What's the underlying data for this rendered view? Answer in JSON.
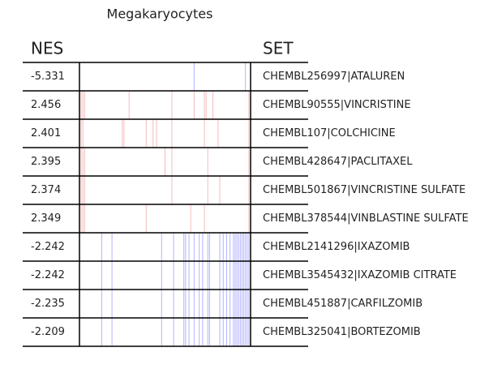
{
  "chart_data": {
    "type": "barcode-table",
    "title": "Megakaryocytes",
    "columns": [
      "NES",
      "SET"
    ],
    "xlim": [
      0,
      1
    ],
    "rows": [
      {
        "nes": -5.331,
        "set": "CHEMBL256997|ATALUREN",
        "color": "rgba(0,0,255,0.3)",
        "hits": [
          0.67,
          0.97,
          1.0
        ]
      },
      {
        "nes": 2.456,
        "set": "CHEMBL90555|VINCRISTINE",
        "color": "rgba(230,60,60,0.35)",
        "hits": [
          0.01,
          0.02,
          0.03,
          0.29,
          0.54,
          0.67,
          0.73,
          0.74,
          0.78,
          0.99
        ]
      },
      {
        "nes": 2.401,
        "set": "CHEMBL107|COLCHICINE",
        "color": "rgba(230,60,60,0.35)",
        "hits": [
          0.01,
          0.02,
          0.25,
          0.26,
          0.39,
          0.43,
          0.45,
          0.54,
          0.73,
          0.81,
          0.99
        ]
      },
      {
        "nes": 2.395,
        "set": "CHEMBL428647|PACLITAXEL",
        "color": "rgba(230,60,60,0.35)",
        "hits": [
          0.01,
          0.02,
          0.03,
          0.5,
          0.54,
          0.75,
          0.99
        ]
      },
      {
        "nes": 2.374,
        "set": "CHEMBL501867|VINCRISTINE SULFATE",
        "color": "rgba(230,60,60,0.35)",
        "hits": [
          0.01,
          0.02,
          0.03,
          0.54,
          0.75,
          0.82,
          0.99
        ]
      },
      {
        "nes": 2.349,
        "set": "CHEMBL378544|VINBLASTINE SULFATE",
        "color": "rgba(230,60,60,0.35)",
        "hits": [
          0.01,
          0.02,
          0.03,
          0.39,
          0.65,
          0.73,
          0.99
        ]
      },
      {
        "nes": -2.242,
        "set": "CHEMBL2141296|IXAZOMIB",
        "color": "rgba(0,0,255,0.3)",
        "hits": [
          0.13,
          0.19,
          0.48,
          0.55,
          0.61,
          0.62,
          0.64,
          0.67,
          0.7,
          0.72,
          0.75,
          0.76,
          0.82,
          0.84,
          0.86,
          0.88,
          0.9,
          0.91,
          0.92,
          0.93,
          0.94,
          0.95,
          0.96,
          0.97,
          0.98,
          0.99
        ]
      },
      {
        "nes": -2.242,
        "set": "CHEMBL3545432|IXAZOMIB CITRATE",
        "color": "rgba(0,0,255,0.3)",
        "hits": [
          0.13,
          0.19,
          0.48,
          0.55,
          0.61,
          0.62,
          0.64,
          0.67,
          0.7,
          0.72,
          0.75,
          0.76,
          0.82,
          0.84,
          0.86,
          0.88,
          0.9,
          0.91,
          0.92,
          0.93,
          0.94,
          0.95,
          0.96,
          0.97,
          0.98,
          0.99
        ]
      },
      {
        "nes": -2.235,
        "set": "CHEMBL451887|CARFILZOMIB",
        "color": "rgba(0,0,255,0.3)",
        "hits": [
          0.13,
          0.19,
          0.48,
          0.55,
          0.61,
          0.62,
          0.64,
          0.67,
          0.7,
          0.72,
          0.75,
          0.76,
          0.82,
          0.84,
          0.86,
          0.88,
          0.9,
          0.91,
          0.92,
          0.93,
          0.94,
          0.95,
          0.96,
          0.97,
          0.98,
          0.99
        ]
      },
      {
        "nes": -2.209,
        "set": "CHEMBL325041|BORTEZOMIB",
        "color": "rgba(0,0,255,0.3)",
        "hits": [
          0.13,
          0.19,
          0.48,
          0.55,
          0.61,
          0.62,
          0.64,
          0.67,
          0.7,
          0.72,
          0.75,
          0.76,
          0.82,
          0.84,
          0.86,
          0.88,
          0.9,
          0.91,
          0.92,
          0.93,
          0.94,
          0.95,
          0.96,
          0.97,
          0.98,
          0.99
        ]
      }
    ]
  }
}
